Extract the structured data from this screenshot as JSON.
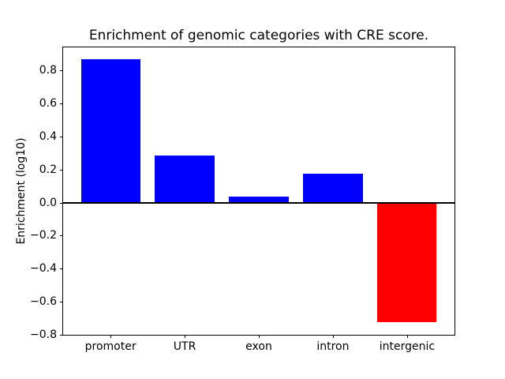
{
  "chart_data": {
    "type": "bar",
    "title": "Enrichment of genomic categories with CRE score.",
    "ylabel": "Enrichment (log10)",
    "xlabel": "",
    "categories": [
      "promoter",
      "UTR",
      "exon",
      "intron",
      "intergenic"
    ],
    "values": [
      0.87,
      0.285,
      0.035,
      0.175,
      -0.725
    ],
    "bar_colors": [
      "#0000ff",
      "#0000ff",
      "#0000ff",
      "#0000ff",
      "#ff0000"
    ],
    "positive_color": "#0000ff",
    "negative_color": "#ff0000",
    "ylim": [
      -0.8,
      0.94
    ],
    "yticks": [
      -0.8,
      -0.6,
      -0.4,
      -0.2,
      0.0,
      0.2,
      0.4,
      0.6,
      0.8
    ],
    "zero_line": true,
    "grid": false,
    "legend": null,
    "background_color": "#ffffff",
    "axis_color": "#000000"
  }
}
